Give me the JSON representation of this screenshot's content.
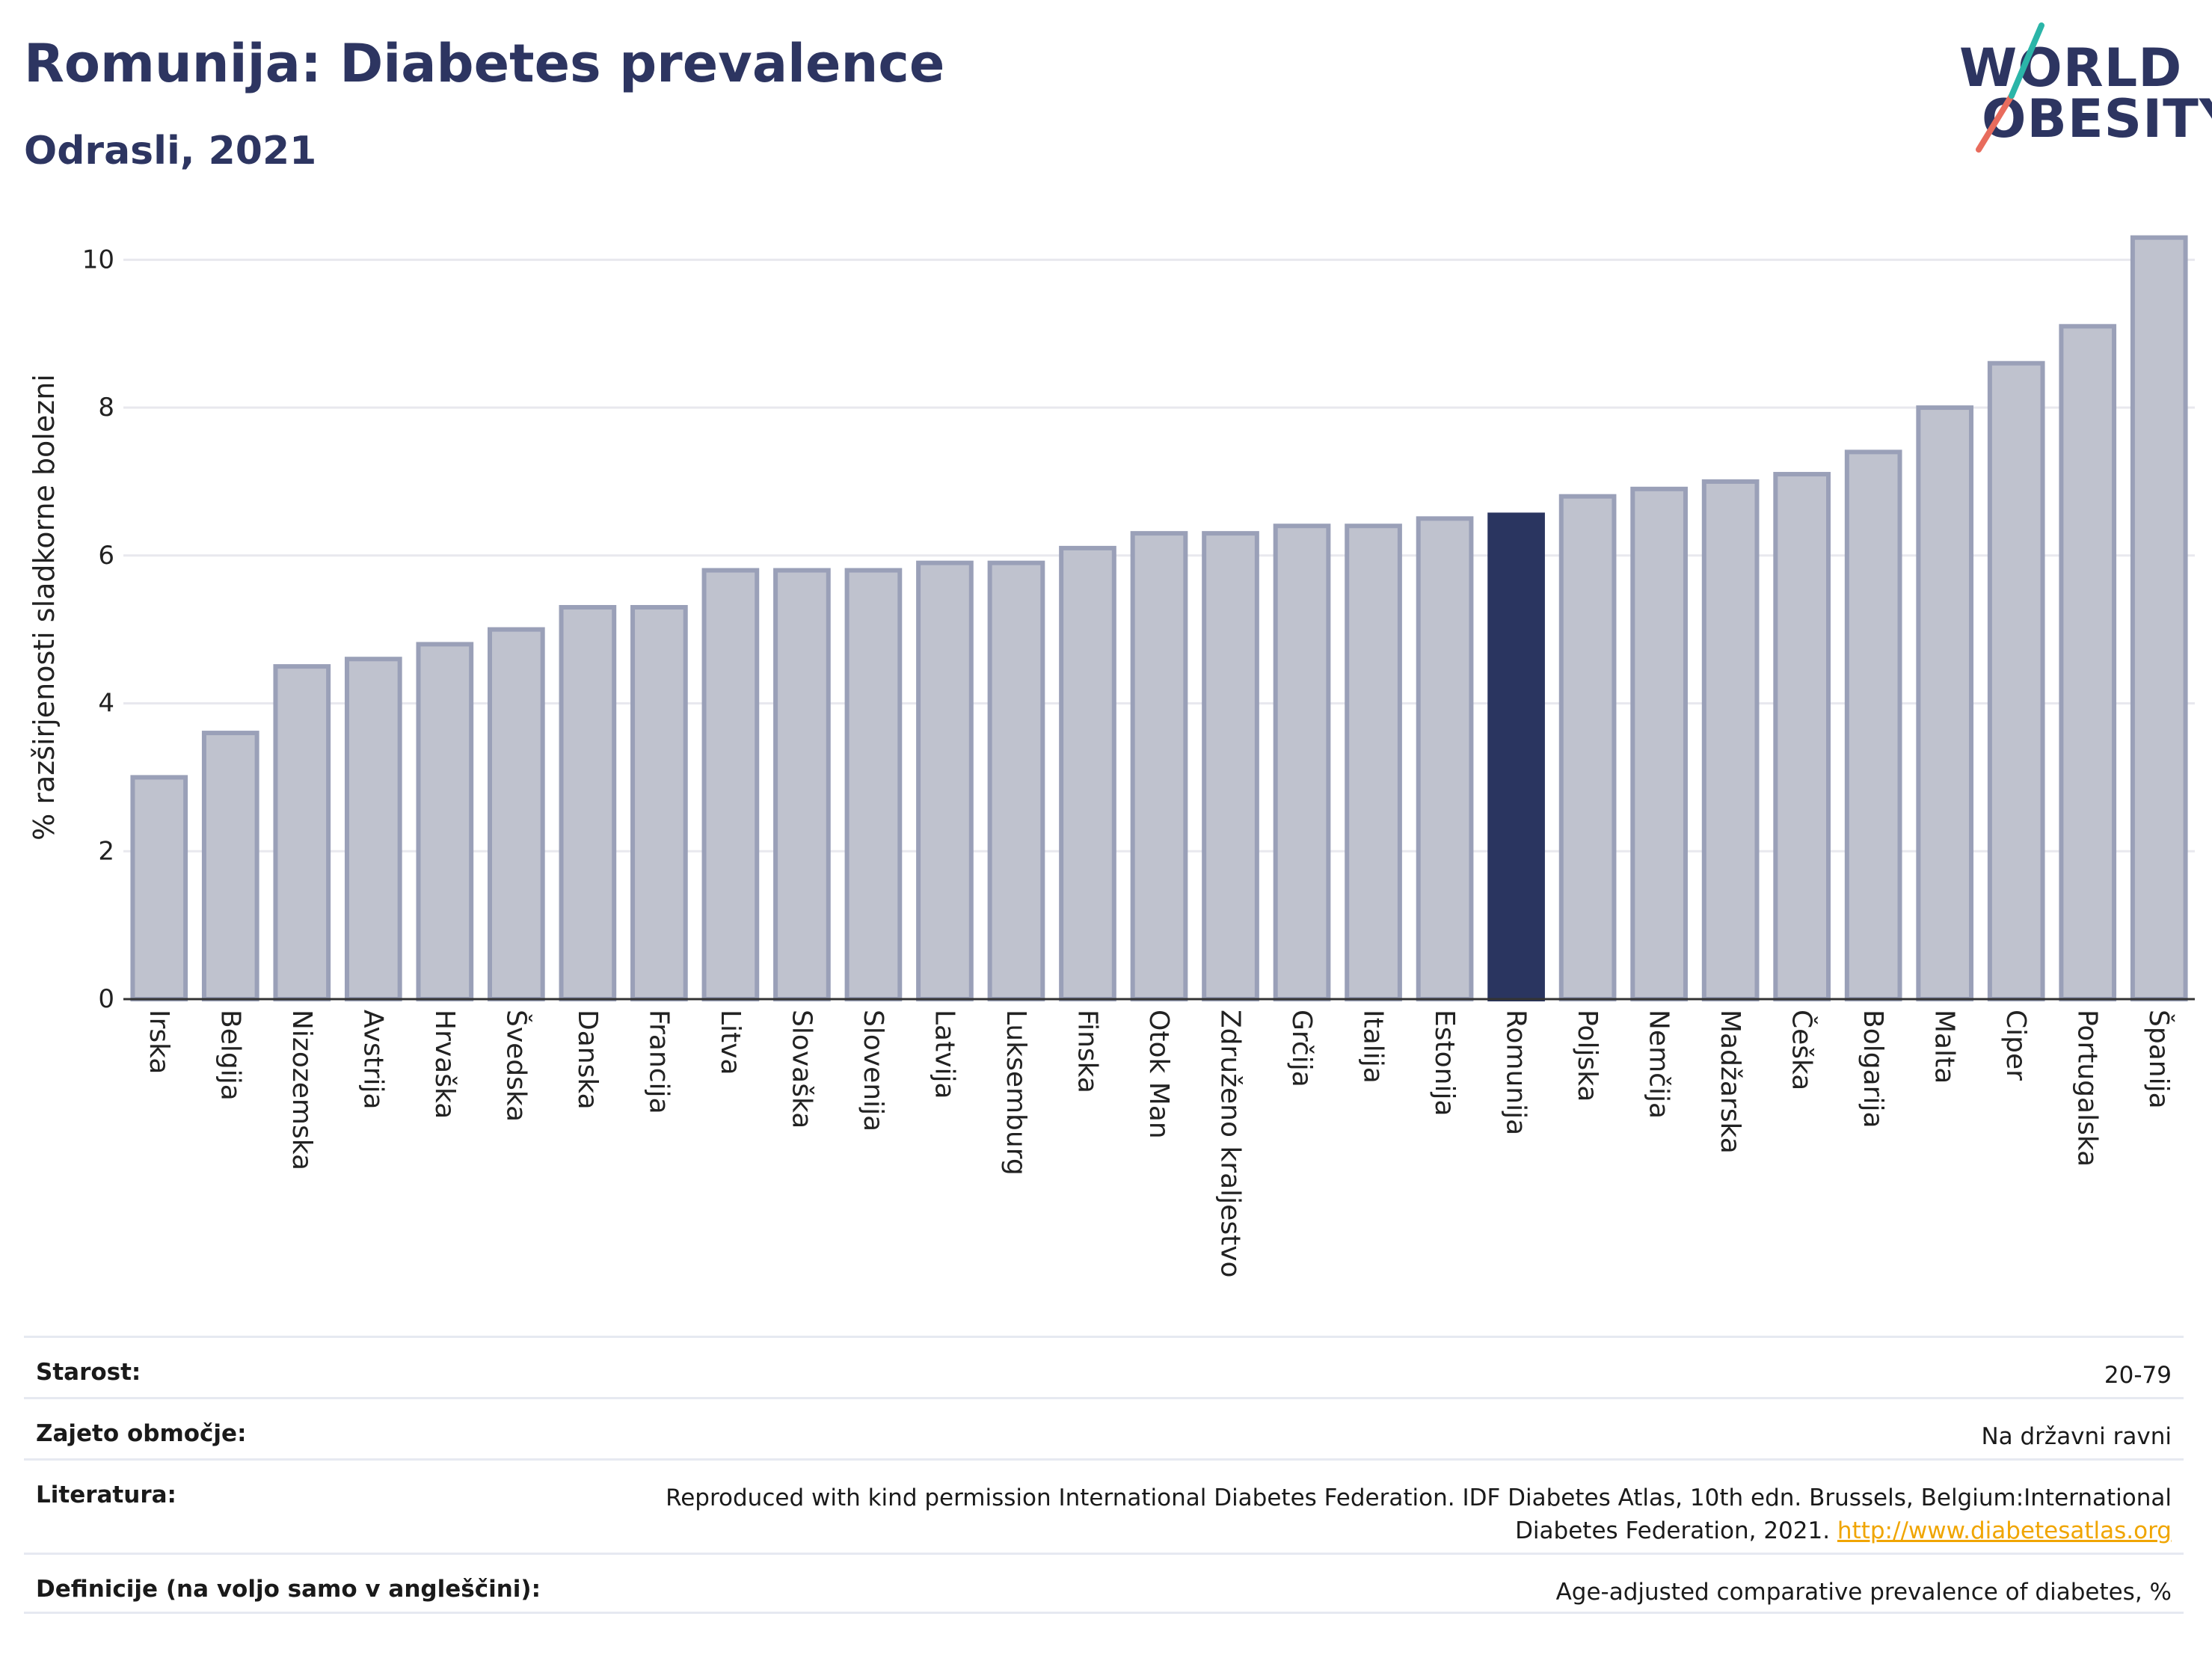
{
  "header": {
    "title": "Romunija: Diabetes prevalence",
    "subtitle": "Odrasli, 2021"
  },
  "logo": {
    "line1": "WORLD",
    "line2": "OBESITY",
    "slash_colors": [
      "#2bb5a8",
      "#e86c5d"
    ]
  },
  "colors": {
    "bar": "#bfc2ce",
    "bar_border": "#9aa0b8",
    "highlight": "#2a3560",
    "title": "#2d3561",
    "grid": "#e8e8ee"
  },
  "chart_data": {
    "type": "bar",
    "title": "",
    "xlabel": "",
    "ylabel": "% razširjenosti sladkorne bolezni",
    "ylim": [
      0,
      10.6
    ],
    "yticks": [
      0,
      2,
      4,
      6,
      8,
      10
    ],
    "grid": true,
    "highlight": "Romunija",
    "categories": [
      "Irska",
      "Belgija",
      "Nizozemska",
      "Avstrija",
      "Hrvaška",
      "Švedska",
      "Danska",
      "Francija",
      "Litva",
      "Slovaška",
      "Slovenija",
      "Latvija",
      "Luksemburg",
      "Finska",
      "Otok Man",
      "Združeno kraljestvo",
      "Grčija",
      "Italija",
      "Estonija",
      "Romunija",
      "Poljska",
      "Nemčija",
      "Madžarska",
      "Češka",
      "Bolgarija",
      "Malta",
      "Ciper",
      "Portugalska",
      "Španija"
    ],
    "values": [
      3.0,
      3.6,
      4.5,
      4.6,
      4.8,
      5.0,
      5.3,
      5.3,
      5.8,
      5.8,
      5.8,
      5.9,
      5.9,
      6.1,
      6.3,
      6.3,
      6.4,
      6.4,
      6.5,
      6.55,
      6.8,
      6.9,
      7.0,
      7.1,
      7.4,
      8.0,
      8.6,
      9.1,
      10.3
    ]
  },
  "meta": [
    {
      "label": "Starost:",
      "value": "20-79"
    },
    {
      "label": "Zajeto območje:",
      "value": "Na državni ravni"
    },
    {
      "label": "Literatura:",
      "value": "Reproduced with kind permission International Diabetes Federation.  IDF Diabetes Atlas, 10th edn. Brussels, Belgium:International Diabetes Federation, 2021. ",
      "link": "http://www.diabetesatlas.org"
    },
    {
      "label": "Definicije (na voljo samo v angleščini):",
      "value": "Age-adjusted comparative prevalence of diabetes, %"
    }
  ]
}
